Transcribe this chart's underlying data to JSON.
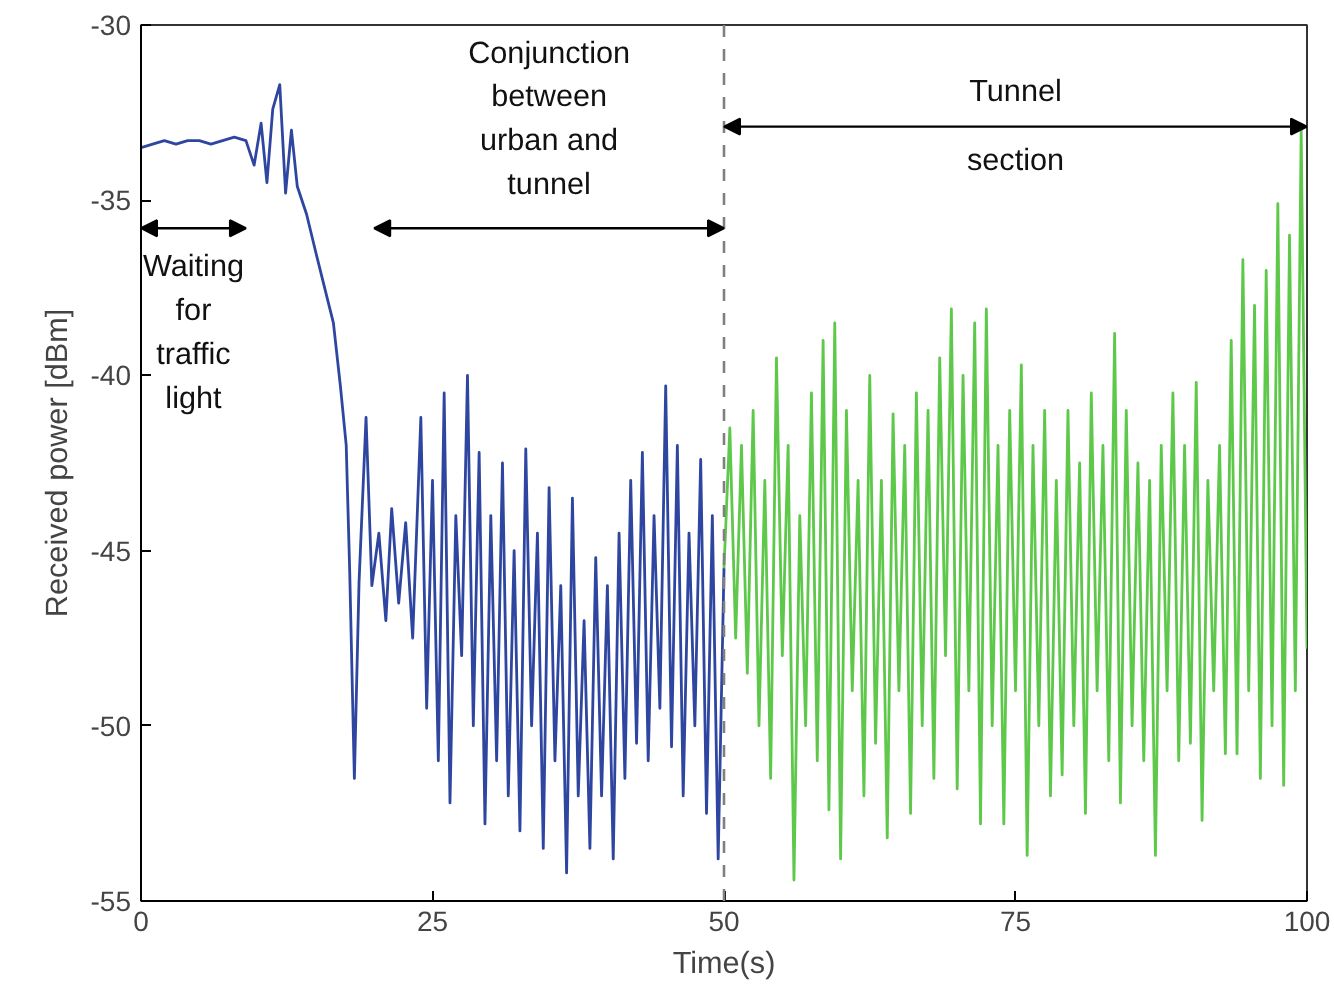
{
  "chart_data": {
    "type": "line",
    "xlabel": "Time(s)",
    "ylabel": "Received power [dBm]",
    "xlim": [
      0,
      100
    ],
    "xticks": [
      0,
      25,
      50,
      75,
      100
    ],
    "ylim": [
      -55,
      -30
    ],
    "yticks": [
      -55,
      -50,
      -45,
      -40,
      -35,
      -30
    ],
    "grid": false,
    "series": [
      {
        "color": "#2e46a0",
        "x": [
          0,
          1,
          2,
          3,
          4,
          5,
          6,
          7,
          8,
          9,
          9.7,
          10.3,
          10.8,
          11.3,
          11.9,
          12.4,
          12.9,
          13.4,
          14.2,
          15,
          15.9,
          16.5,
          17.1,
          17.6,
          17.9,
          18.3,
          18.7,
          19.3,
          19.8,
          20.4,
          21,
          21.5,
          22.1,
          22.7,
          23.3,
          24,
          24.5,
          25,
          25.5,
          26,
          26.5,
          27,
          27.5,
          28,
          28.5,
          29,
          29.5,
          30,
          30.5,
          31,
          31.5,
          32,
          32.5,
          33,
          33.5,
          34,
          34.5,
          35,
          35.5,
          36,
          36.5,
          37,
          37.5,
          38,
          38.5,
          39,
          39.5,
          40,
          40.5,
          41,
          41.5,
          42,
          42.5,
          43,
          43.5,
          44,
          44.5,
          45,
          45.5,
          46,
          46.5,
          47,
          47.5,
          48,
          48.5,
          49,
          49.5,
          50
        ],
        "values": [
          -33.5,
          -33.4,
          -33.3,
          -33.4,
          -33.3,
          -33.3,
          -33.4,
          -33.3,
          -33.2,
          -33.3,
          -34,
          -32.8,
          -34.5,
          -32.4,
          -31.7,
          -34.8,
          -33,
          -34.6,
          -35.4,
          -36.5,
          -37.7,
          -38.5,
          -40.3,
          -42,
          -45.6,
          -51.5,
          -45.9,
          -41.2,
          -46,
          -44.5,
          -47,
          -43.8,
          -46.5,
          -44.2,
          -47.5,
          -41.2,
          -49.5,
          -43,
          -51,
          -40.5,
          -52.2,
          -44,
          -48,
          -40,
          -50,
          -42.2,
          -52.8,
          -44,
          -51,
          -42.5,
          -52,
          -45,
          -53,
          -42.1,
          -50,
          -44.5,
          -53.5,
          -43.2,
          -51,
          -46,
          -54.2,
          -43.5,
          -52,
          -47,
          -53.5,
          -45.2,
          -52,
          -46,
          -53.8,
          -44.5,
          -51.5,
          -43,
          -50.5,
          -42.2,
          -51,
          -44,
          -49.5,
          -40.3,
          -50.6,
          -42,
          -52,
          -44.5,
          -50,
          -42.4,
          -52.5,
          -44,
          -53.8,
          -45.5
        ]
      },
      {
        "color": "#5ec84a",
        "x": [
          50,
          50.5,
          51,
          51.5,
          52,
          52.5,
          53,
          53.5,
          54,
          54.5,
          55,
          55.5,
          56,
          56.5,
          57,
          57.5,
          58,
          58.5,
          59,
          59.5,
          60,
          60.5,
          61,
          61.5,
          62,
          62.5,
          63,
          63.5,
          64,
          64.5,
          65,
          65.5,
          66,
          66.5,
          67,
          67.5,
          68,
          68.5,
          69,
          69.5,
          70,
          70.5,
          71,
          71.5,
          72,
          72.5,
          73,
          73.5,
          74,
          74.5,
          75,
          75.5,
          76,
          76.5,
          77,
          77.5,
          78,
          78.5,
          79,
          79.5,
          80,
          80.5,
          81,
          81.5,
          82,
          82.5,
          83,
          83.5,
          84,
          84.5,
          85,
          85.5,
          86,
          86.5,
          87,
          87.5,
          88,
          88.5,
          89,
          89.5,
          90,
          90.5,
          91,
          91.5,
          92,
          92.5,
          93,
          93.5,
          94,
          94.5,
          95,
          95.5,
          96,
          96.5,
          97,
          97.5,
          98,
          98.5,
          99,
          99.5,
          100
        ],
        "values": [
          -45.5,
          -41.5,
          -47.5,
          -42,
          -48.5,
          -41,
          -50,
          -43,
          -51.5,
          -39.5,
          -48,
          -42,
          -54.4,
          -44,
          -50,
          -40.5,
          -51,
          -39,
          -52.4,
          -38.5,
          -53.8,
          -41,
          -49,
          -43,
          -52,
          -40,
          -50.5,
          -43,
          -53.2,
          -41.1,
          -49,
          -42,
          -52.5,
          -40.5,
          -50,
          -41,
          -51.5,
          -39.5,
          -48,
          -38.1,
          -51.8,
          -40,
          -49,
          -38.5,
          -52.8,
          -38.1,
          -50,
          -42,
          -52.8,
          -41,
          -49,
          -39.7,
          -53.7,
          -42,
          -50,
          -41,
          -52,
          -43,
          -51.4,
          -41,
          -50,
          -42.5,
          -52.5,
          -40.5,
          -49,
          -42,
          -51,
          -38.8,
          -52.2,
          -41,
          -50,
          -42.5,
          -51,
          -43,
          -53.7,
          -42,
          -49,
          -40.5,
          -51,
          -42,
          -50.5,
          -40.2,
          -52.7,
          -43,
          -49,
          -42,
          -50.8,
          -39,
          -50.8,
          -36.7,
          -49,
          -38,
          -51.5,
          -37,
          -50,
          -35.1,
          -51.7,
          -36,
          -49,
          -33,
          -47.8
        ]
      }
    ],
    "ref_lines": [
      {
        "axis": "x",
        "value": 50,
        "color": "#808080",
        "line_style": "dashed"
      }
    ],
    "annotations": [
      "Waiting\nfor\ntraffic\nlight",
      "Conjunction\nbetween\nurban and\ntunnel",
      "Tunnel\nsection"
    ]
  }
}
